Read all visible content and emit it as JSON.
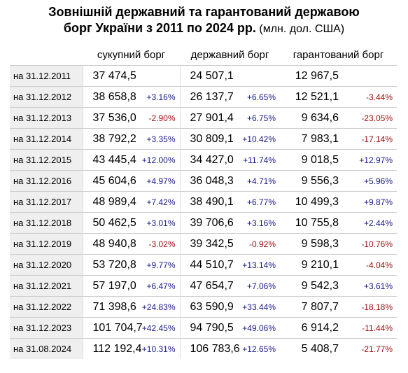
{
  "title": {
    "line1": "Зовнішній державний та гарантований державою",
    "line2_bold": "борг України з 2011 по 2024 рр.",
    "line2_note": " (млн. дол. США)"
  },
  "headers": {
    "total": "сукупний борг",
    "state": "державний борг",
    "guaranteed": "гарантований борг"
  },
  "rows": [
    {
      "date": "на 31.12.2011",
      "total": "37 474,5",
      "total_pct": "",
      "state": "24 507,1",
      "state_pct": "",
      "guaranteed": "12 967,5",
      "guaranteed_pct": ""
    },
    {
      "date": "на 31.12.2012",
      "total": "38 658,8",
      "total_pct": "+3.16%",
      "state": "26 137,7",
      "state_pct": "+6.65%",
      "guaranteed": "12 521,1",
      "guaranteed_pct": "-3.44%"
    },
    {
      "date": "на 31.12.2013",
      "total": "37 536,0",
      "total_pct": "-2.90%",
      "state": "27 901,4",
      "state_pct": "+6.75%",
      "guaranteed": "9 634,6",
      "guaranteed_pct": "-23.05%"
    },
    {
      "date": "на 31.12.2014",
      "total": "38 792,2",
      "total_pct": "+3.35%",
      "state": "30 809,1",
      "state_pct": "+10.42%",
      "guaranteed": "7 983,1",
      "guaranteed_pct": "-17.14%"
    },
    {
      "date": "на 31.12.2015",
      "total": "43 445,4",
      "total_pct": "+12.00%",
      "state": "34 427,0",
      "state_pct": "+11.74%",
      "guaranteed": "9 018,5",
      "guaranteed_pct": "+12.97%"
    },
    {
      "date": "на 31.12.2016",
      "total": "45 604,6",
      "total_pct": "+4.97%",
      "state": "36 048,3",
      "state_pct": "+4.71%",
      "guaranteed": "9 556,3",
      "guaranteed_pct": "+5.96%"
    },
    {
      "date": "на 31.12.2017",
      "total": "48 989,4",
      "total_pct": "+7.42%",
      "state": "38 490,1",
      "state_pct": "+6.77%",
      "guaranteed": "10 499,3",
      "guaranteed_pct": "+9.87%"
    },
    {
      "date": "на 31.12.2018",
      "total": "50 462,5",
      "total_pct": "+3.01%",
      "state": "39 706,6",
      "state_pct": "+3.16%",
      "guaranteed": "10 755,8",
      "guaranteed_pct": "+2.44%"
    },
    {
      "date": "на 31.12.2019",
      "total": "48 940,8",
      "total_pct": "-3.02%",
      "state": "39 342,5",
      "state_pct": "-0.92%",
      "guaranteed": "9 598,3",
      "guaranteed_pct": "-10.76%"
    },
    {
      "date": "на 31.12.2020",
      "total": "53 720,8",
      "total_pct": "+9.77%",
      "state": "44 510,7",
      "state_pct": "+13.14%",
      "guaranteed": "9 210,1",
      "guaranteed_pct": "-4.04%"
    },
    {
      "date": "на 31.12.2021",
      "total": "57 197,0",
      "total_pct": "+6.47%",
      "state": "47 654,7",
      "state_pct": "+7.06%",
      "guaranteed": "9 542,3",
      "guaranteed_pct": "+3.61%"
    },
    {
      "date": "на 31.12.2022",
      "total": "71 398,6",
      "total_pct": "+24.83%",
      "state": "63 590,9",
      "state_pct": "+33.44%",
      "guaranteed": "7 807,7",
      "guaranteed_pct": "-18.18%"
    },
    {
      "date": "на 31.12.2023",
      "total": "101 704,7",
      "total_pct": "+42.45%",
      "state": "94 790,5",
      "state_pct": "+49.06%",
      "guaranteed": "6 914,2",
      "guaranteed_pct": "-11.44%"
    },
    {
      "date": "на 31.08.2024",
      "total": "112 192,4",
      "total_pct": "+10.31%",
      "state": "106 783,6",
      "state_pct": "+12.65%",
      "guaranteed": "5 408,7",
      "guaranteed_pct": "-21.77%"
    }
  ],
  "colors": {
    "positive": "#1a1a8c",
    "negative": "#a01010",
    "date_bg": "#efefef",
    "grid": "#cccccc"
  }
}
